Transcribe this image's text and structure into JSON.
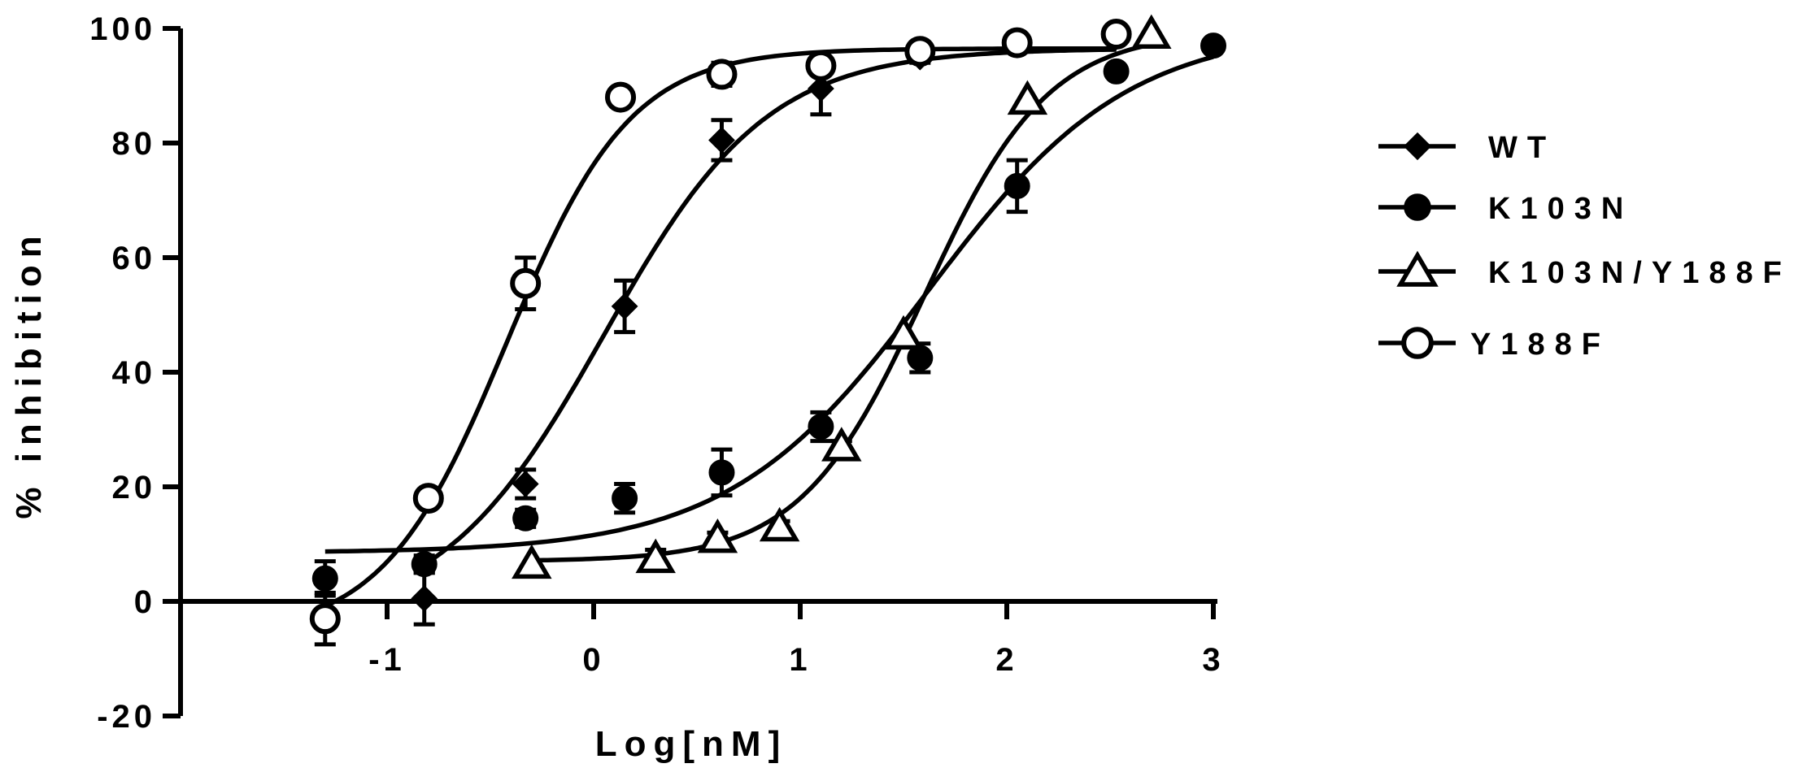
{
  "chart_data": {
    "type": "scatter",
    "xlabel": "Log[nM]",
    "ylabel": "% inhibition",
    "xlim": [
      -2,
      3
    ],
    "ylim": [
      -20,
      100
    ],
    "x_ticks": [
      "-1",
      "0",
      "1",
      "2",
      "3"
    ],
    "y_ticks": [
      "-20",
      "0",
      "20",
      "40",
      "60",
      "80",
      "100"
    ],
    "legend_position": "right",
    "series": [
      {
        "name": "WT",
        "marker": "diamond-filled",
        "points": [
          {
            "x": -0.82,
            "y": 0.5,
            "err": 4.5
          },
          {
            "x": -0.33,
            "y": 20.5,
            "err": 2.5
          },
          {
            "x": 0.15,
            "y": 51.5,
            "err": 4.5
          },
          {
            "x": 0.62,
            "y": 80.5,
            "err": 3.5
          },
          {
            "x": 1.1,
            "y": 89.5,
            "err": 4.5
          },
          {
            "x": 1.58,
            "y": 95.0,
            "err": 1.0
          },
          {
            "x": 2.05,
            "y": 97.5,
            "err": 0.5
          },
          {
            "x": 2.53,
            "y": 98.5,
            "err": 0.5
          }
        ],
        "fit": {
          "bottom": -3.5,
          "top": 96.5,
          "logEC50": 0.05,
          "hill": 1.1
        }
      },
      {
        "name": "K103N",
        "marker": "circle-filled",
        "points": [
          {
            "x": -1.3,
            "y": 4.0,
            "err": 3.0
          },
          {
            "x": -0.82,
            "y": 6.5,
            "err": 1.5
          },
          {
            "x": -0.33,
            "y": 14.5,
            "err": 1.5
          },
          {
            "x": 0.15,
            "y": 18.0,
            "err": 2.5
          },
          {
            "x": 0.62,
            "y": 22.5,
            "err": 4.0
          },
          {
            "x": 1.1,
            "y": 30.5,
            "err": 2.5
          },
          {
            "x": 1.58,
            "y": 42.5,
            "err": 2.5
          },
          {
            "x": 2.05,
            "y": 72.5,
            "err": 4.5
          },
          {
            "x": 2.53,
            "y": 92.5,
            "err": 0.5
          },
          {
            "x": 3.0,
            "y": 97.0,
            "err": 0.5
          }
        ],
        "fit": {
          "bottom": 8.5,
          "top": 100,
          "logEC50": 1.62,
          "hill": 0.9
        }
      },
      {
        "name": "K103N/Y188F",
        "marker": "triangle-open",
        "points": [
          {
            "x": -0.3,
            "y": 6.5,
            "err": 0
          },
          {
            "x": 0.3,
            "y": 7.5,
            "err": 1.5
          },
          {
            "x": 0.6,
            "y": 11.0,
            "err": 1.0
          },
          {
            "x": 0.9,
            "y": 13.0,
            "err": 1.0
          },
          {
            "x": 1.2,
            "y": 27.0,
            "err": 1.0
          },
          {
            "x": 1.5,
            "y": 46.5,
            "err": 0.5
          },
          {
            "x": 2.1,
            "y": 87.5,
            "err": 0.5
          },
          {
            "x": 2.7,
            "y": 99.0,
            "err": 0.5
          }
        ],
        "fit": {
          "bottom": 7.0,
          "top": 99.5,
          "logEC50": 1.6,
          "hill": 1.45
        }
      },
      {
        "name": "Y188F",
        "marker": "circle-open",
        "points": [
          {
            "x": -1.3,
            "y": -3.0,
            "err": 4.5
          },
          {
            "x": -0.8,
            "y": 18.0,
            "err": 1.0
          },
          {
            "x": -0.33,
            "y": 55.5,
            "err": 4.5
          },
          {
            "x": 0.13,
            "y": 88.0,
            "err": 1.0
          },
          {
            "x": 0.62,
            "y": 92.0,
            "err": 2.0
          },
          {
            "x": 1.1,
            "y": 93.5,
            "err": 1.5
          },
          {
            "x": 1.58,
            "y": 96.0,
            "err": 0.5
          },
          {
            "x": 2.05,
            "y": 97.5,
            "err": 0.5
          },
          {
            "x": 2.53,
            "y": 99.0,
            "err": 1.0
          }
        ],
        "fit": {
          "bottom": -6.0,
          "top": 96.5,
          "logEC50": -0.42,
          "hill": 1.45
        }
      }
    ]
  }
}
